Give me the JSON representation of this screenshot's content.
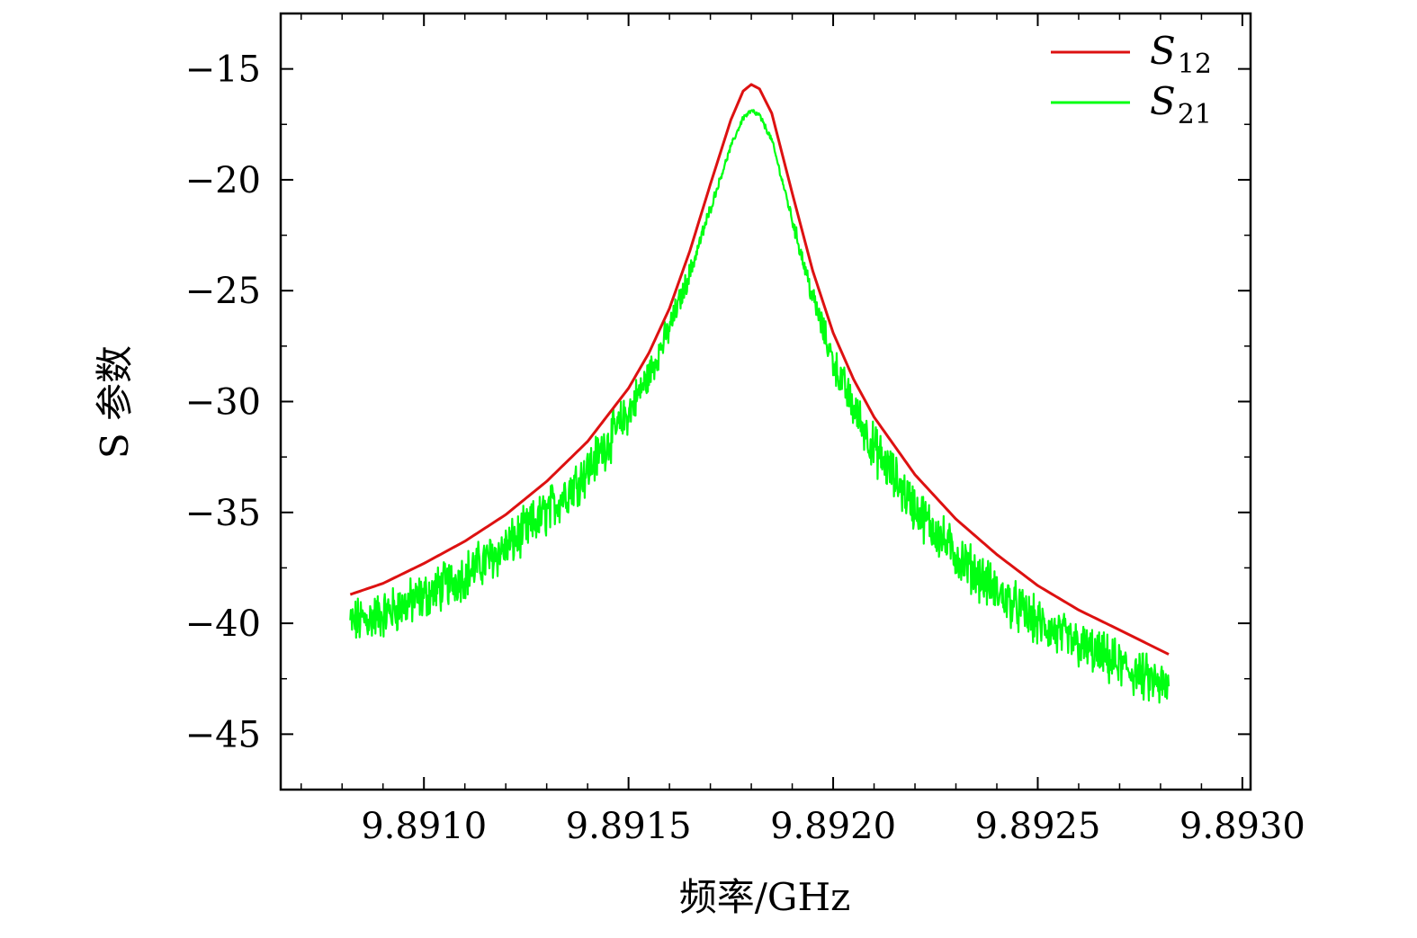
{
  "chart_data": {
    "type": "line",
    "title": "",
    "xlabel": "频率/GHz",
    "ylabel": "S 参数",
    "xlim": [
      9.89065,
      9.89302
    ],
    "ylim": [
      -47.5,
      -12.5
    ],
    "xticks": [
      9.891,
      9.8915,
      9.892,
      9.8925,
      9.893
    ],
    "xtick_labels": [
      "9.8910",
      "9.8915",
      "9.8920",
      "9.8925",
      "9.8930"
    ],
    "yticks": [
      -15,
      -20,
      -25,
      -30,
      -35,
      -40,
      -45
    ],
    "ytick_labels": [
      "−15",
      "−20",
      "−25",
      "−30",
      "−35",
      "−40",
      "−45"
    ],
    "grid": false,
    "legend_position": "top-right",
    "series": [
      {
        "name": "S12",
        "legend_main": "S",
        "legend_sub": "12",
        "color": "#dd1111",
        "x": [
          9.89082,
          9.8909,
          9.891,
          9.8911,
          9.8912,
          9.8913,
          9.8914,
          9.8915,
          9.89155,
          9.8916,
          9.89165,
          9.8917,
          9.89175,
          9.89178,
          9.8918,
          9.89182,
          9.89185,
          9.8919,
          9.89195,
          9.892,
          9.89205,
          9.8921,
          9.8922,
          9.8923,
          9.8924,
          9.8925,
          9.8926,
          9.8927,
          9.89282
        ],
        "y": [
          -38.7,
          -38.2,
          -37.3,
          -36.3,
          -35.1,
          -33.6,
          -31.8,
          -29.4,
          -27.8,
          -25.8,
          -23.2,
          -20.2,
          -17.3,
          -16.0,
          -15.7,
          -15.9,
          -17.0,
          -20.6,
          -24.1,
          -26.9,
          -29.0,
          -30.7,
          -33.3,
          -35.3,
          -36.9,
          -38.3,
          -39.4,
          -40.3,
          -41.4
        ]
      },
      {
        "name": "S21",
        "legend_main": "S",
        "legend_sub": "21",
        "color": "#00ff11",
        "x": [
          9.89082,
          9.8909,
          9.891,
          9.8911,
          9.8912,
          9.8913,
          9.8914,
          9.8915,
          9.89155,
          9.8916,
          9.89165,
          9.8917,
          9.89175,
          9.89178,
          9.8918,
          9.89182,
          9.89185,
          9.8919,
          9.89195,
          9.892,
          9.89205,
          9.8921,
          9.8922,
          9.8923,
          9.8924,
          9.8925,
          9.8926,
          9.8927,
          9.89282
        ],
        "y": [
          -40.0,
          -39.6,
          -38.8,
          -37.8,
          -36.6,
          -35.0,
          -33.1,
          -30.5,
          -28.8,
          -26.7,
          -24.2,
          -21.3,
          -18.5,
          -17.2,
          -16.9,
          -17.1,
          -18.2,
          -21.8,
          -25.3,
          -28.2,
          -30.3,
          -32.1,
          -34.8,
          -36.9,
          -38.6,
          -40.0,
          -41.0,
          -41.9,
          -43.0
        ],
        "noise_amplitude": 0.9
      }
    ]
  }
}
